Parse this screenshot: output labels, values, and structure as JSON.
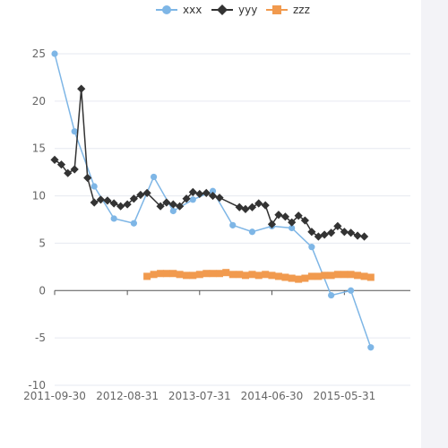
{
  "colors": {
    "xxx": "#7eb6e6",
    "yyy": "#333333",
    "zzz": "#f19a4e",
    "grid": "#e6e9f0",
    "axis": "#555555"
  },
  "chart_data": {
    "type": "line",
    "title": "",
    "xlabel": "",
    "ylabel": "",
    "ylim": [
      -10,
      25
    ],
    "yticks": [
      -10,
      -5,
      0,
      5,
      10,
      15,
      20,
      25
    ],
    "xlim": [
      "2011-09-30",
      "2016-03-31"
    ],
    "xtick_labels": [
      "2011-09-30",
      "2012-08-31",
      "2013-07-31",
      "2014-06-30",
      "2015-05-31"
    ],
    "grid": true,
    "legend": "top-center",
    "series": [
      {
        "name": "xxx",
        "marker": "circle",
        "points": [
          [
            "2011-09-30",
            25.0
          ],
          [
            "2011-12-31",
            16.8
          ],
          [
            "2012-03-31",
            11.0
          ],
          [
            "2012-06-30",
            7.6
          ],
          [
            "2012-09-30",
            7.1
          ],
          [
            "2012-12-31",
            12.0
          ],
          [
            "2013-03-31",
            8.4
          ],
          [
            "2013-06-30",
            9.6
          ],
          [
            "2013-09-30",
            10.5
          ],
          [
            "2013-12-31",
            6.9
          ],
          [
            "2014-03-31",
            6.2
          ],
          [
            "2014-06-30",
            6.8
          ],
          [
            "2014-09-30",
            6.6
          ],
          [
            "2014-12-31",
            4.6
          ],
          [
            "2015-03-31",
            -0.5
          ],
          [
            "2015-06-30",
            0.0
          ],
          [
            "2015-09-30",
            -6.0
          ]
        ]
      },
      {
        "name": "yyy",
        "marker": "diamond",
        "points": [
          [
            "2011-09-30",
            13.8
          ],
          [
            "2011-10-31",
            13.3
          ],
          [
            "2011-11-30",
            12.4
          ],
          [
            "2011-12-31",
            12.8
          ],
          [
            "2012-01-31",
            21.3
          ],
          [
            "2012-02-29",
            11.9
          ],
          [
            "2012-03-31",
            9.3
          ],
          [
            "2012-04-30",
            9.6
          ],
          [
            "2012-05-31",
            9.5
          ],
          [
            "2012-06-30",
            9.2
          ],
          [
            "2012-07-31",
            8.9
          ],
          [
            "2012-08-31",
            9.1
          ],
          [
            "2012-09-30",
            9.7
          ],
          [
            "2012-10-31",
            10.1
          ],
          [
            "2012-11-30",
            10.3
          ],
          [
            "2013-01-31",
            8.9
          ],
          [
            "2013-02-28",
            9.3
          ],
          [
            "2013-03-31",
            9.1
          ],
          [
            "2013-04-30",
            8.9
          ],
          [
            "2013-05-31",
            9.7
          ],
          [
            "2013-06-30",
            10.4
          ],
          [
            "2013-07-31",
            10.2
          ],
          [
            "2013-08-31",
            10.3
          ],
          [
            "2013-09-30",
            10.0
          ],
          [
            "2013-10-31",
            9.8
          ],
          [
            "2014-01-31",
            8.8
          ],
          [
            "2014-02-28",
            8.6
          ],
          [
            "2014-03-31",
            8.8
          ],
          [
            "2014-04-30",
            9.2
          ],
          [
            "2014-05-31",
            9.0
          ],
          [
            "2014-06-30",
            7.0
          ],
          [
            "2014-07-31",
            8.0
          ],
          [
            "2014-08-31",
            7.8
          ],
          [
            "2014-09-30",
            7.2
          ],
          [
            "2014-10-31",
            7.9
          ],
          [
            "2014-11-30",
            7.4
          ],
          [
            "2014-12-31",
            6.2
          ],
          [
            "2015-01-31",
            5.7
          ],
          [
            "2015-02-28",
            5.9
          ],
          [
            "2015-03-31",
            6.1
          ],
          [
            "2015-04-30",
            6.8
          ],
          [
            "2015-05-31",
            6.2
          ],
          [
            "2015-06-30",
            6.1
          ],
          [
            "2015-07-31",
            5.8
          ],
          [
            "2015-08-31",
            5.7
          ]
        ]
      },
      {
        "name": "zzz",
        "marker": "square",
        "points": [
          [
            "2012-11-30",
            1.5
          ],
          [
            "2012-12-31",
            1.7
          ],
          [
            "2013-01-31",
            1.8
          ],
          [
            "2013-02-28",
            1.8
          ],
          [
            "2013-03-31",
            1.8
          ],
          [
            "2013-04-30",
            1.7
          ],
          [
            "2013-05-31",
            1.6
          ],
          [
            "2013-06-30",
            1.6
          ],
          [
            "2013-07-31",
            1.7
          ],
          [
            "2013-08-31",
            1.8
          ],
          [
            "2013-09-30",
            1.8
          ],
          [
            "2013-10-31",
            1.8
          ],
          [
            "2013-11-30",
            1.9
          ],
          [
            "2013-12-31",
            1.7
          ],
          [
            "2014-01-31",
            1.7
          ],
          [
            "2014-02-28",
            1.6
          ],
          [
            "2014-03-31",
            1.7
          ],
          [
            "2014-04-30",
            1.6
          ],
          [
            "2014-05-31",
            1.7
          ],
          [
            "2014-06-30",
            1.6
          ],
          [
            "2014-07-31",
            1.5
          ],
          [
            "2014-08-31",
            1.4
          ],
          [
            "2014-09-30",
            1.3
          ],
          [
            "2014-10-31",
            1.2
          ],
          [
            "2014-11-30",
            1.3
          ],
          [
            "2014-12-31",
            1.5
          ],
          [
            "2015-01-31",
            1.5
          ],
          [
            "2015-02-28",
            1.6
          ],
          [
            "2015-03-31",
            1.6
          ],
          [
            "2015-04-30",
            1.7
          ],
          [
            "2015-05-31",
            1.7
          ],
          [
            "2015-06-30",
            1.7
          ],
          [
            "2015-07-31",
            1.6
          ],
          [
            "2015-08-31",
            1.5
          ],
          [
            "2015-09-30",
            1.4
          ]
        ]
      }
    ]
  }
}
